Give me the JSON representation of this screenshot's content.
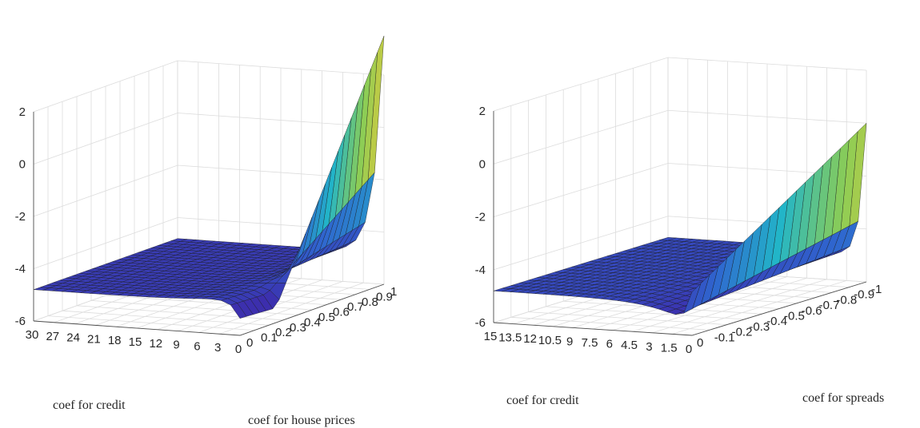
{
  "chart_data": [
    {
      "type": "surface",
      "xlabel": "coef for credit",
      "ylabel": "coef for house prices",
      "zlabel": "",
      "x_ticks": [
        "30",
        "27",
        "24",
        "21",
        "18",
        "15",
        "12",
        "9",
        "6",
        "3",
        "0"
      ],
      "y_ticks": [
        "0",
        "0.1",
        "0.2",
        "0.3",
        "0.4",
        "0.5",
        "0.6",
        "0.7",
        "0.8",
        "0.9",
        "1"
      ],
      "z_ticks": [
        "2",
        "0",
        "-2",
        "-4",
        "-6"
      ],
      "xlim": [
        0,
        30
      ],
      "ylim": [
        0,
        1
      ],
      "zlim": [
        -6,
        2
      ],
      "grid": true,
      "colormap": [
        "#3e26a8",
        "#2f66cf",
        "#22b5c8",
        "#8ccd55",
        "#f9c933",
        "#f9fb15"
      ],
      "surface_description": "Flat plateau at z ≈ -4.8 for most credit coefficients; near credit coefficient 0 the surface dips slightly then rises steeply toward z ≈ 3.5 as the house price coefficient approaches 1.",
      "plateau_z": -4.8,
      "peak_z": 3.5
    },
    {
      "type": "surface",
      "xlabel": "coef for credit",
      "ylabel": "coef for spreads",
      "zlabel": "",
      "x_ticks": [
        "15",
        "13.5",
        "12",
        "10.5",
        "9",
        "7.5",
        "6",
        "4.5",
        "3",
        "1.5",
        "0"
      ],
      "y_ticks": [
        "0",
        "-0.1",
        "-0.2",
        "-0.3",
        "-0.4",
        "-0.5",
        "-0.6",
        "-0.7",
        "-0.8",
        "-0.9",
        "-1"
      ],
      "z_ticks": [
        "2",
        "0",
        "-2",
        "-4",
        "-6"
      ],
      "xlim": [
        0,
        15
      ],
      "ylim": [
        -1,
        0
      ],
      "zlim": [
        -6,
        2
      ],
      "grid": true,
      "colormap": [
        "#3e26a8",
        "#2f66cf",
        "#22b5c8",
        "#8ccd55",
        "#f9c933",
        "#f9fb15"
      ],
      "surface_description": "Bowl-like plateau near z ≈ -4.8 decreasing toward -5.8 near credit coefficient 0; a ridge rises from about -3 to 0 as the spreads coefficient goes toward -1.",
      "plateau_z": -4.8,
      "peak_z": 0.0
    }
  ]
}
